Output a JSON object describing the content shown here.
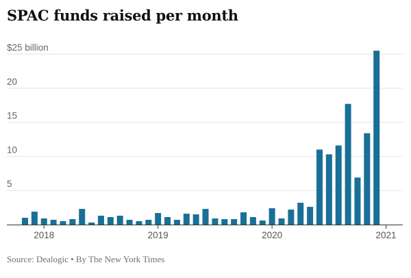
{
  "chart_data": {
    "type": "bar",
    "title": "SPAC funds raised per month",
    "y_unit_label": "$25 billion",
    "ylim": [
      0,
      25
    ],
    "yticks": [
      {
        "value": 5,
        "label": "5"
      },
      {
        "value": 10,
        "label": "10"
      },
      {
        "value": 15,
        "label": "15"
      },
      {
        "value": 20,
        "label": "20"
      },
      {
        "value": 25,
        "label": "$25 billion"
      }
    ],
    "xtick_labels": [
      {
        "index": 2,
        "label": "2018"
      },
      {
        "index": 14,
        "label": "2019"
      },
      {
        "index": 26,
        "label": "2020"
      },
      {
        "index": 38,
        "label": "2021"
      }
    ],
    "bar_color": "#1a6f97",
    "grid": true,
    "categories": [
      "2017-11",
      "2017-12",
      "2018-01",
      "2018-02",
      "2018-03",
      "2018-04",
      "2018-05",
      "2018-06",
      "2018-07",
      "2018-08",
      "2018-09",
      "2018-10",
      "2018-11",
      "2018-12",
      "2019-01",
      "2019-02",
      "2019-03",
      "2019-04",
      "2019-05",
      "2019-06",
      "2019-07",
      "2019-08",
      "2019-09",
      "2019-10",
      "2019-11",
      "2019-12",
      "2020-01",
      "2020-02",
      "2020-03",
      "2020-04",
      "2020-05",
      "2020-06",
      "2020-07",
      "2020-08",
      "2020-09",
      "2020-10",
      "2020-11",
      "2020-12",
      "2021-01"
    ],
    "values": [
      1.0,
      1.9,
      0.9,
      0.7,
      0.5,
      0.8,
      2.3,
      0.3,
      1.3,
      1.1,
      1.3,
      0.7,
      0.5,
      0.7,
      1.7,
      1.1,
      0.7,
      1.6,
      1.5,
      2.3,
      0.9,
      0.8,
      0.8,
      1.8,
      1.1,
      0.6,
      2.4,
      0.9,
      2.2,
      3.2,
      2.6,
      11.0,
      10.3,
      11.6,
      17.7,
      6.9,
      13.4,
      25.5,
      0.0
    ]
  },
  "source": "Source: Dealogic • By The New York Times"
}
